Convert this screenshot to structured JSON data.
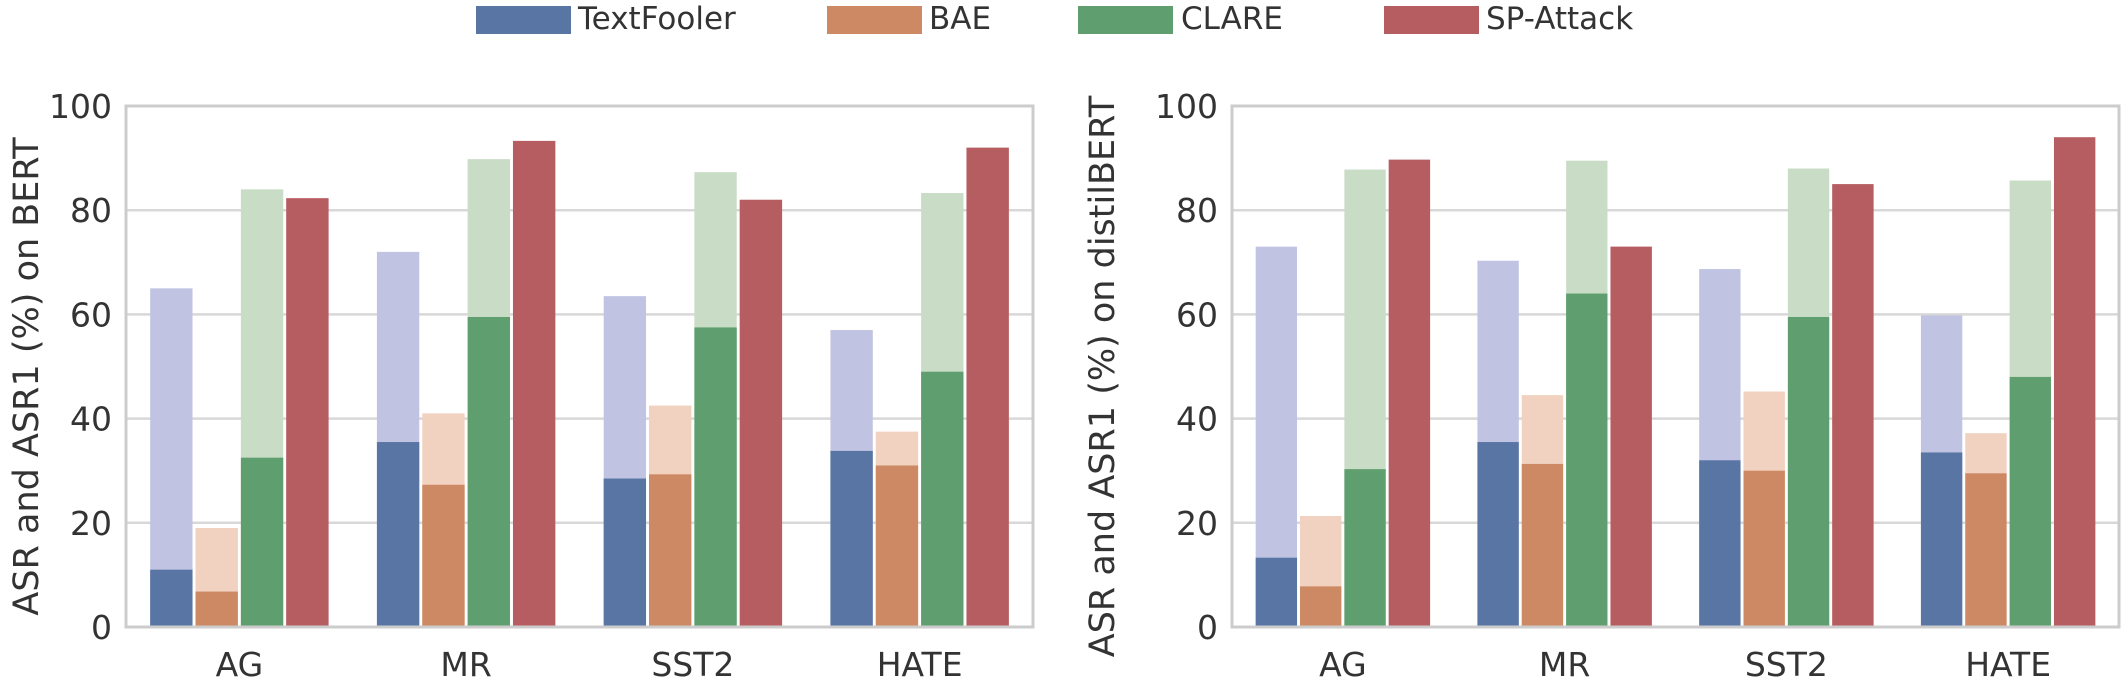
{
  "legend": {
    "entries": [
      {
        "name": "TextFooler",
        "color": "#5875a4"
      },
      {
        "name": "BAE",
        "color": "#cc8963"
      },
      {
        "name": "CLARE",
        "color": "#5f9e6e"
      },
      {
        "name": "SP-Attack",
        "color": "#b55d60"
      }
    ]
  },
  "colors": {
    "asr_light": [
      "#c0c3e2",
      "#f1d1bf",
      "#c9dcc5",
      "#e3b4b5"
    ],
    "asr1": [
      "#5875a4",
      "#cc8963",
      "#5f9e6e",
      "#b55d60"
    ],
    "grid": "#d8d8d8",
    "frame": "#cccccc"
  },
  "chart_data": [
    {
      "type": "bar",
      "ylabel": "ASR and ASR1 (%) on BERT",
      "xlabel": "",
      "ylim": [
        0,
        100
      ],
      "yticks": [
        0,
        20,
        40,
        60,
        80,
        100
      ],
      "grid": true,
      "categories": [
        "AG",
        "MR",
        "SST2",
        "HATE"
      ],
      "series": [
        {
          "name": "TextFooler",
          "asr": [
            65,
            72,
            63.5,
            57
          ],
          "asr1": [
            11,
            35.5,
            28.5,
            33.8
          ]
        },
        {
          "name": "BAE",
          "asr": [
            19,
            41,
            42.5,
            37.5
          ],
          "asr1": [
            6.8,
            27.3,
            29.3,
            31
          ]
        },
        {
          "name": "CLARE",
          "asr": [
            84,
            89.8,
            87.3,
            83.3
          ],
          "asr1": [
            32.5,
            59.5,
            57.5,
            49
          ]
        },
        {
          "name": "SP-Attack",
          "asr": [
            82.3,
            93.3,
            82,
            92
          ],
          "asr1": [
            82.3,
            93.3,
            82,
            92
          ]
        }
      ]
    },
    {
      "type": "bar",
      "ylabel": "ASR and ASR1 (%) on distilBERT",
      "xlabel": "",
      "ylim": [
        0,
        100
      ],
      "yticks": [
        0,
        20,
        40,
        60,
        80,
        100
      ],
      "grid": true,
      "categories": [
        "AG",
        "MR",
        "SST2",
        "HATE"
      ],
      "series": [
        {
          "name": "TextFooler",
          "asr": [
            73,
            70.3,
            68.7,
            59.8
          ],
          "asr1": [
            13.3,
            35.5,
            32,
            33.5
          ]
        },
        {
          "name": "BAE",
          "asr": [
            21.3,
            44.5,
            45.2,
            37.2
          ],
          "asr1": [
            7.8,
            31.3,
            30,
            29.5
          ]
        },
        {
          "name": "CLARE",
          "asr": [
            87.8,
            89.5,
            88,
            85.7
          ],
          "asr1": [
            30.3,
            64,
            59.5,
            48
          ]
        },
        {
          "name": "SP-Attack",
          "asr": [
            89.7,
            73,
            85,
            94
          ],
          "asr1": [
            89.7,
            73,
            85,
            94
          ]
        }
      ]
    }
  ]
}
